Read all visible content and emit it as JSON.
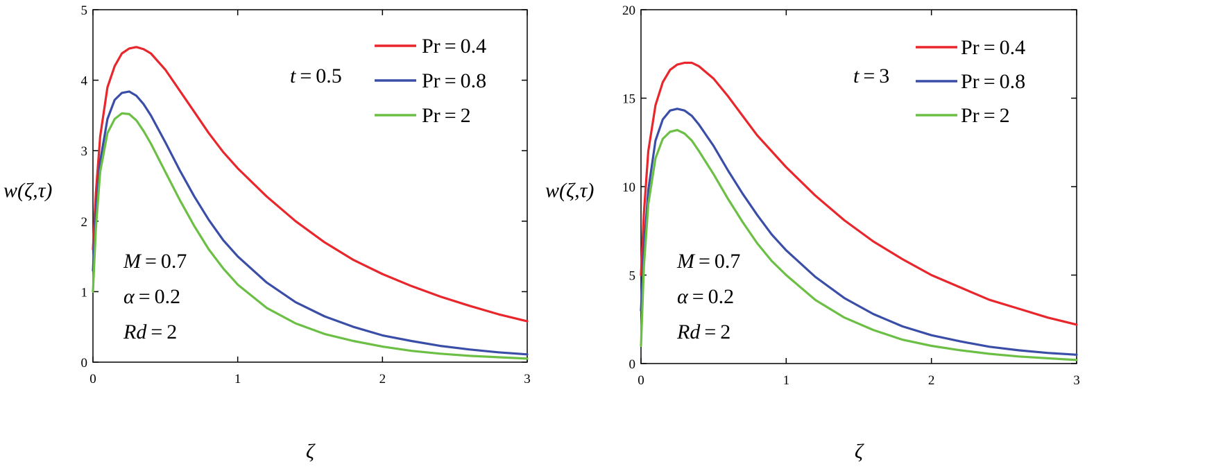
{
  "chart_data": [
    {
      "type": "line",
      "xlabel": "ζ",
      "ylabel": "w(ζ,τ)",
      "xlim": [
        0,
        3
      ],
      "ylim": [
        0,
        5
      ],
      "xticks": [
        "0",
        "1",
        "2",
        "3"
      ],
      "yticks": [
        "0",
        "1",
        "2",
        "3",
        "4",
        "5"
      ],
      "time_label": "t = 0.5",
      "params": [
        "M = 0.7",
        "α = 0.2",
        "Rd = 2"
      ],
      "series": [
        {
          "name": "Pr = 0.4",
          "color": "#e8262b",
          "x": [
            0,
            0.02,
            0.05,
            0.1,
            0.15,
            0.2,
            0.25,
            0.3,
            0.35,
            0.4,
            0.5,
            0.6,
            0.7,
            0.8,
            0.9,
            1.0,
            1.2,
            1.4,
            1.6,
            1.8,
            2.0,
            2.2,
            2.4,
            2.6,
            2.8,
            3.0
          ],
          "y": [
            1.6,
            2.4,
            3.2,
            3.9,
            4.2,
            4.38,
            4.45,
            4.47,
            4.44,
            4.38,
            4.15,
            3.85,
            3.55,
            3.25,
            2.98,
            2.75,
            2.35,
            2.0,
            1.7,
            1.45,
            1.25,
            1.08,
            0.93,
            0.8,
            0.68,
            0.58
          ]
        },
        {
          "name": "Pr = 0.8",
          "color": "#3a4ea8",
          "x": [
            0,
            0.02,
            0.05,
            0.1,
            0.15,
            0.2,
            0.25,
            0.3,
            0.35,
            0.4,
            0.5,
            0.6,
            0.7,
            0.8,
            0.9,
            1.0,
            1.2,
            1.4,
            1.6,
            1.8,
            2.0,
            2.2,
            2.4,
            2.6,
            2.8,
            3.0
          ],
          "y": [
            1.3,
            2.1,
            2.85,
            3.45,
            3.72,
            3.82,
            3.84,
            3.78,
            3.66,
            3.5,
            3.12,
            2.72,
            2.35,
            2.02,
            1.73,
            1.5,
            1.13,
            0.85,
            0.65,
            0.5,
            0.38,
            0.3,
            0.23,
            0.18,
            0.14,
            0.11
          ]
        },
        {
          "name": "Pr = 2",
          "color": "#6cbf45",
          "x": [
            0,
            0.02,
            0.05,
            0.1,
            0.15,
            0.2,
            0.25,
            0.3,
            0.35,
            0.4,
            0.5,
            0.6,
            0.7,
            0.8,
            0.9,
            1.0,
            1.2,
            1.4,
            1.6,
            1.8,
            2.0,
            2.2,
            2.4,
            2.6,
            2.8,
            3.0
          ],
          "y": [
            1.0,
            1.9,
            2.7,
            3.25,
            3.45,
            3.53,
            3.52,
            3.43,
            3.28,
            3.1,
            2.7,
            2.3,
            1.93,
            1.6,
            1.33,
            1.1,
            0.77,
            0.55,
            0.4,
            0.3,
            0.22,
            0.16,
            0.12,
            0.09,
            0.07,
            0.05
          ]
        }
      ]
    },
    {
      "type": "line",
      "xlabel": "ζ",
      "ylabel": "w(ζ,τ)",
      "xlim": [
        0,
        3
      ],
      "ylim": [
        0,
        20
      ],
      "xticks": [
        "0",
        "1",
        "2",
        "3"
      ],
      "yticks": [
        "0",
        "5",
        "10",
        "15",
        "20"
      ],
      "time_label": "t = 3",
      "params": [
        "M = 0.7",
        "α = 0.2",
        "Rd = 2"
      ],
      "series": [
        {
          "name": "Pr = 0.4",
          "color": "#e8262b",
          "x": [
            0,
            0.02,
            0.05,
            0.1,
            0.15,
            0.2,
            0.25,
            0.3,
            0.35,
            0.4,
            0.5,
            0.6,
            0.7,
            0.8,
            0.9,
            1.0,
            1.2,
            1.4,
            1.6,
            1.8,
            2.0,
            2.2,
            2.4,
            2.6,
            2.8,
            3.0
          ],
          "y": [
            5.0,
            8.5,
            12.0,
            14.6,
            15.9,
            16.6,
            16.9,
            17.0,
            17.0,
            16.8,
            16.1,
            15.1,
            14.0,
            12.9,
            12.0,
            11.1,
            9.5,
            8.1,
            6.9,
            5.9,
            5.0,
            4.3,
            3.6,
            3.1,
            2.6,
            2.2
          ]
        },
        {
          "name": "Pr = 0.8",
          "color": "#3a4ea8",
          "x": [
            0,
            0.02,
            0.05,
            0.1,
            0.15,
            0.2,
            0.25,
            0.3,
            0.35,
            0.4,
            0.5,
            0.6,
            0.7,
            0.8,
            0.9,
            1.0,
            1.2,
            1.4,
            1.6,
            1.8,
            2.0,
            2.2,
            2.4,
            2.6,
            2.8,
            3.0
          ],
          "y": [
            3.0,
            6.5,
            9.8,
            12.6,
            13.8,
            14.3,
            14.4,
            14.3,
            14.0,
            13.5,
            12.3,
            10.9,
            9.6,
            8.4,
            7.3,
            6.4,
            4.9,
            3.7,
            2.8,
            2.1,
            1.6,
            1.25,
            0.95,
            0.75,
            0.6,
            0.5
          ]
        },
        {
          "name": "Pr = 2",
          "color": "#6cbf45",
          "x": [
            0,
            0.02,
            0.05,
            0.1,
            0.15,
            0.2,
            0.25,
            0.3,
            0.35,
            0.4,
            0.5,
            0.6,
            0.7,
            0.8,
            0.9,
            1.0,
            1.2,
            1.4,
            1.6,
            1.8,
            2.0,
            2.2,
            2.4,
            2.6,
            2.8,
            3.0
          ],
          "y": [
            1.0,
            5.5,
            9.0,
            11.6,
            12.7,
            13.1,
            13.2,
            13.0,
            12.6,
            12.0,
            10.7,
            9.3,
            8.0,
            6.8,
            5.8,
            5.0,
            3.6,
            2.6,
            1.9,
            1.35,
            1.0,
            0.75,
            0.55,
            0.4,
            0.3,
            0.2
          ]
        }
      ]
    }
  ]
}
